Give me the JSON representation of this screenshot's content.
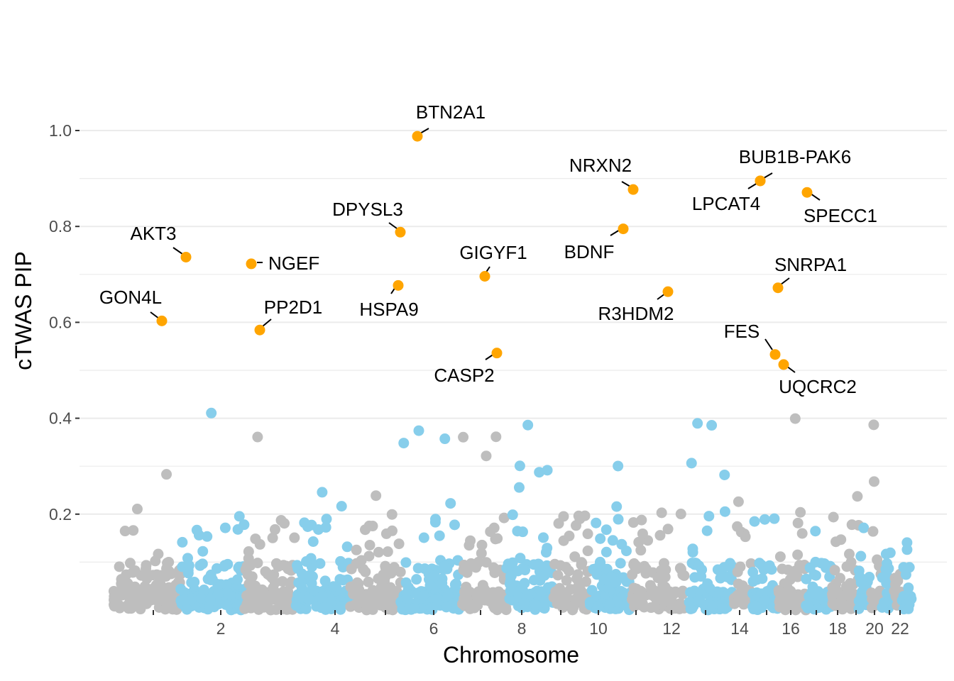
{
  "chart_data": {
    "type": "scatter",
    "title": "",
    "xlabel": "Chromosome",
    "ylabel": "cTWAS PIP",
    "ylim": [
      0,
      1.0
    ],
    "y_ticks": [
      0.2,
      0.4,
      0.6,
      0.8,
      1.0
    ],
    "y_tick_labels": [
      "0.2",
      "0.4",
      "0.6",
      "0.8",
      "1.0"
    ],
    "x_ticks": [
      {
        "chrom": 1,
        "label": ""
      },
      {
        "chrom": 2,
        "label": "2"
      },
      {
        "chrom": 3,
        "label": ""
      },
      {
        "chrom": 4,
        "label": "4"
      },
      {
        "chrom": 5,
        "label": ""
      },
      {
        "chrom": 6,
        "label": "6"
      },
      {
        "chrom": 7,
        "label": ""
      },
      {
        "chrom": 8,
        "label": "8"
      },
      {
        "chrom": 9,
        "label": ""
      },
      {
        "chrom": 10,
        "label": "10"
      },
      {
        "chrom": 11,
        "label": ""
      },
      {
        "chrom": 12,
        "label": "12"
      },
      {
        "chrom": 13,
        "label": ""
      },
      {
        "chrom": 14,
        "label": "14"
      },
      {
        "chrom": 15,
        "label": ""
      },
      {
        "chrom": 16,
        "label": "16"
      },
      {
        "chrom": 17,
        "label": ""
      },
      {
        "chrom": 18,
        "label": "18"
      },
      {
        "chrom": 19,
        "label": ""
      },
      {
        "chrom": 20,
        "label": "20"
      },
      {
        "chrom": 21,
        "label": ""
      },
      {
        "chrom": 22,
        "label": "22"
      }
    ],
    "chromosomes": [
      {
        "chrom": 1,
        "start": 0.0,
        "end": 0.086
      },
      {
        "chrom": 2,
        "start": 0.086,
        "end": 0.169
      },
      {
        "chrom": 3,
        "start": 0.169,
        "end": 0.235
      },
      {
        "chrom": 4,
        "start": 0.235,
        "end": 0.305
      },
      {
        "chrom": 5,
        "start": 0.305,
        "end": 0.37
      },
      {
        "chrom": 6,
        "start": 0.37,
        "end": 0.449
      },
      {
        "chrom": 7,
        "start": 0.449,
        "end": 0.506
      },
      {
        "chrom": 8,
        "start": 0.506,
        "end": 0.567
      },
      {
        "chrom": 9,
        "start": 0.567,
        "end": 0.613
      },
      {
        "chrom": 10,
        "start": 0.613,
        "end": 0.668
      },
      {
        "chrom": 11,
        "start": 0.668,
        "end": 0.739
      },
      {
        "chrom": 12,
        "start": 0.739,
        "end": 0.799
      },
      {
        "chrom": 13,
        "start": 0.799,
        "end": 0.822
      },
      {
        "chrom": 14,
        "start": 0.822,
        "end": 0.857
      },
      {
        "chrom": 15,
        "start": 0.857,
        "end": 0.892
      },
      {
        "chrom": 16,
        "start": 0.892,
        "end": 0.926
      },
      {
        "chrom": 17,
        "start": 0.926,
        "end": 0.96
      },
      {
        "chrom": 18,
        "start": 0.96,
        "end": 0.976
      },
      {
        "chrom": 19,
        "start": 0.976,
        "end": 0.99
      },
      {
        "chrom": 20,
        "start": 0.99,
        "end": 1.005
      },
      {
        "chrom": 21,
        "start": 1.005,
        "end": 1.015
      },
      {
        "chrom": 22,
        "start": 1.015,
        "end": 1.028
      }
    ],
    "colors": {
      "odd_chromosome": "#bebebe",
      "even_chromosome": "#87ceeb",
      "highlight": "#ffa500",
      "grid": "#ebebeb",
      "tick_text": "#4d4d4d",
      "tick_mark": "#333333"
    },
    "grid": true,
    "legend": "none",
    "background_points_note": "thousands of low-PIP genes (mostly below 0.1) alternating grey/sky-blue by chromosome",
    "highlighted_genes": [
      {
        "gene": "GON4L",
        "chrom": 1,
        "pip": 0.603
      },
      {
        "gene": "AKT3",
        "chrom": 1,
        "pip": 0.736
      },
      {
        "gene": "NGEF",
        "chrom": 2,
        "pip": 0.722
      },
      {
        "gene": "PP2D1",
        "chrom": 3,
        "pip": 0.584
      },
      {
        "gene": "DPYSL3",
        "chrom": 5,
        "pip": 0.788
      },
      {
        "gene": "HSPA9",
        "chrom": 5,
        "pip": 0.677
      },
      {
        "gene": "BTN2A1",
        "chrom": 6,
        "pip": 0.988
      },
      {
        "gene": "GIGYF1",
        "chrom": 7,
        "pip": 0.696
      },
      {
        "gene": "CASP2",
        "chrom": 7,
        "pip": 0.536
      },
      {
        "gene": "NRXN2",
        "chrom": 11,
        "pip": 0.877
      },
      {
        "gene": "BDNF",
        "chrom": 11,
        "pip": 0.795
      },
      {
        "gene": "R3HDM2",
        "chrom": 12,
        "pip": 0.664
      },
      {
        "gene": "BUB1B-PAK6",
        "chrom": 15,
        "pip": 0.895
      },
      {
        "gene": "LPCAT4",
        "chrom": 15,
        "pip": 0.895
      },
      {
        "gene": "FES",
        "chrom": 15,
        "pip": 0.533
      },
      {
        "gene": "SNRPA1",
        "chrom": 15,
        "pip": 0.672
      },
      {
        "gene": "UQCRC2",
        "chrom": 16,
        "pip": 0.512
      },
      {
        "gene": "SPECC1",
        "chrom": 17,
        "pip": 0.871
      }
    ]
  }
}
